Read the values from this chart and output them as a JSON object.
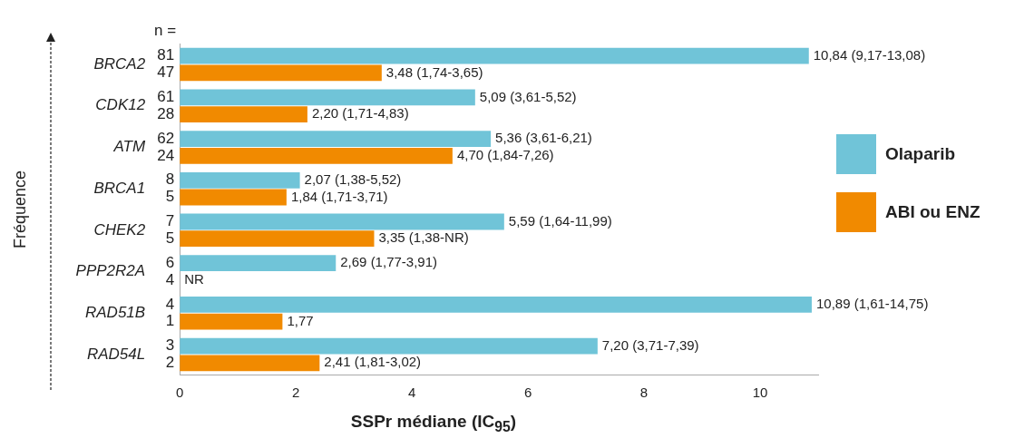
{
  "chart_data": {
    "type": "bar",
    "orientation": "horizontal",
    "xlabel": "SSPr médiane (IC$_{95}$)",
    "ylabel": "Fréquence",
    "categories": [
      "BRCA2",
      "CDK12",
      "ATM",
      "BRCA1",
      "CHEK2",
      "PPP2R2A",
      "RAD51B",
      "RAD54L"
    ],
    "series": [
      {
        "name": "Olaparib",
        "color": "#70c4d8",
        "values": [
          10.84,
          5.09,
          5.36,
          2.07,
          5.59,
          2.69,
          10.89,
          7.2
        ],
        "value_labels": [
          "10,84 (9,17-13,08)",
          "5,09 (3,61-5,52)",
          "5,36 (3,61-6,21)",
          "2,07 (1,38-5,52)",
          "5,59 (1,64-11,99)",
          "2,69 (1,77-3,91)",
          "10,89 (1,61-14,75)",
          "7,20 (3,71-7,39)"
        ]
      },
      {
        "name": "ABI ou ENZ",
        "color": "#f18a00",
        "values": [
          3.48,
          2.2,
          4.7,
          1.84,
          3.35,
          null,
          1.77,
          2.41
        ],
        "value_labels": [
          "3,48 (1,74-3,65)",
          "2,20 (1,71-4,83)",
          "4,70 (1,84-7,26)",
          "1,84 (1,71-3,71)",
          "3,35 (1,38-NR)",
          "NR",
          "1,77",
          "2,41 (1,81-3,02)"
        ]
      }
    ],
    "xlim": [
      0,
      11
    ],
    "xticks": [
      0,
      2,
      4,
      6,
      8,
      10
    ],
    "grid": false,
    "legend": "right",
    "annotations": [
      "n =",
      "81",
      "47",
      "61",
      "28",
      "62",
      "24",
      "8",
      "5",
      "7",
      "5",
      "6",
      "4",
      "4",
      "1",
      "3",
      "2"
    ]
  }
}
